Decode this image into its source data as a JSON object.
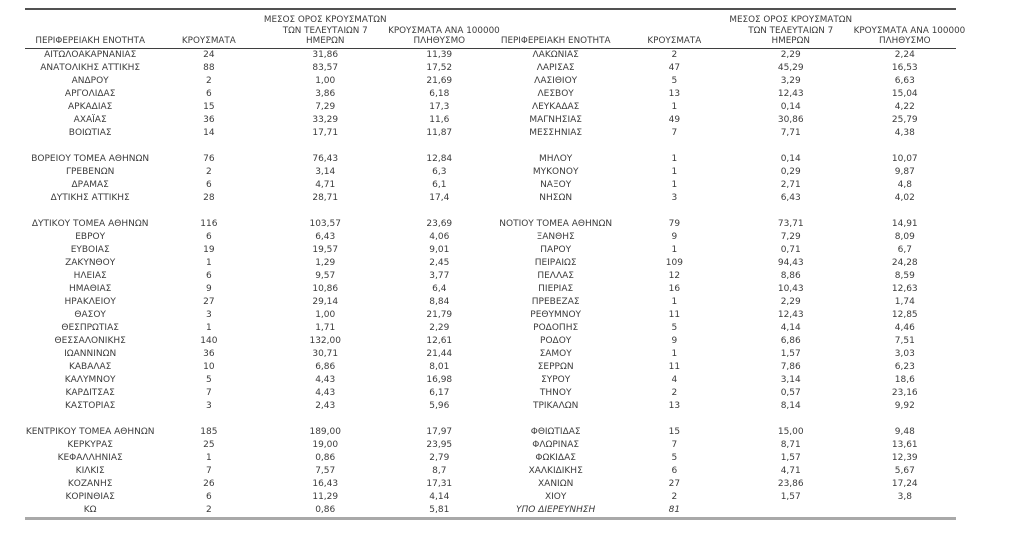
{
  "styles": {
    "text_color": "#3c3c3c",
    "top_border_color": "#515151",
    "header_rule_color": "#3f3f3f",
    "bottom_border_color": "#a9a9a9",
    "background": "#ffffff"
  },
  "header": {
    "columns": [
      {
        "lines": [
          "ΠΕΡΙΦΕΡΕΙΑΚΗ ΕΝΟΤΗΤΑ"
        ]
      },
      {
        "lines": [
          "ΚΡΟΥΣΜΑΤΑ"
        ]
      },
      {
        "lines": [
          "ΜΕΣΟΣ ΟΡΟΣ ΚΡΟΥΣΜΑΤΩΝ",
          "ΤΩΝ ΤΕΛΕΥΤΑΙΩΝ 7",
          "ΗΜΕΡΩΝ"
        ]
      },
      {
        "lines": [
          "ΚΡΟΥΣΜΑΤΑ ΑΝΑ 100000",
          "ΠΛΗΘΥΣΜΟ"
        ]
      }
    ]
  },
  "tables": [
    {
      "rows": [
        {
          "cells": [
            "ΑΙΤΩΛΟΑΚΑΡΝΑΝΙΑΣ",
            "24",
            "31,86",
            "11,39"
          ]
        },
        {
          "cells": [
            "ΑΝΑΤΟΛΙΚΗΣ ΑΤΤΙΚΗΣ",
            "88",
            "83,57",
            "17,52"
          ]
        },
        {
          "cells": [
            "ΑΝΔΡΟΥ",
            "2",
            "1,00",
            "21,69"
          ]
        },
        {
          "cells": [
            "ΑΡΓΟΛΙΔΑΣ",
            "6",
            "3,86",
            "6,18"
          ]
        },
        {
          "cells": [
            "ΑΡΚΑΔΙΑΣ",
            "15",
            "7,29",
            "17,3"
          ]
        },
        {
          "cells": [
            "ΑΧΑΪΑΣ",
            "36",
            "33,29",
            "11,6"
          ]
        },
        {
          "cells": [
            "ΒΟΙΩΤΙΑΣ",
            "14",
            "17,71",
            "11,87"
          ]
        },
        {
          "spacer": true
        },
        {
          "cells": [
            "ΒΟΡΕΙΟΥ ΤΟΜΕΑ ΑΘΗΝΩΝ",
            "76",
            "76,43",
            "12,84"
          ]
        },
        {
          "cells": [
            "ΓΡΕΒΕΝΩΝ",
            "2",
            "3,14",
            "6,3"
          ]
        },
        {
          "cells": [
            "ΔΡΑΜΑΣ",
            "6",
            "4,71",
            "6,1"
          ]
        },
        {
          "cells": [
            "ΔΥΤΙΚΗΣ ΑΤΤΙΚΗΣ",
            "28",
            "28,71",
            "17,4"
          ]
        },
        {
          "spacer": true
        },
        {
          "cells": [
            "ΔΥΤΙΚΟΥ ΤΟΜΕΑ ΑΘΗΝΩΝ",
            "116",
            "103,57",
            "23,69"
          ]
        },
        {
          "cells": [
            "ΕΒΡΟΥ",
            "6",
            "6,43",
            "4,06"
          ]
        },
        {
          "cells": [
            "ΕΥΒΟΙΑΣ",
            "19",
            "19,57",
            "9,01"
          ]
        },
        {
          "cells": [
            "ΖΑΚΥΝΘΟΥ",
            "1",
            "1,29",
            "2,45"
          ]
        },
        {
          "cells": [
            "ΗΛΕΙΑΣ",
            "6",
            "9,57",
            "3,77"
          ]
        },
        {
          "cells": [
            "ΗΜΑΘΙΑΣ",
            "9",
            "10,86",
            "6,4"
          ]
        },
        {
          "cells": [
            "ΗΡΑΚΛΕΙΟΥ",
            "27",
            "29,14",
            "8,84"
          ]
        },
        {
          "cells": [
            "ΘΑΣΟΥ",
            "3",
            "1,00",
            "21,79"
          ]
        },
        {
          "cells": [
            "ΘΕΣΠΡΩΤΙΑΣ",
            "1",
            "1,71",
            "2,29"
          ]
        },
        {
          "cells": [
            "ΘΕΣΣΑΛΟΝΙΚΗΣ",
            "140",
            "132,00",
            "12,61"
          ]
        },
        {
          "cells": [
            "ΙΩΑΝΝΙΝΩΝ",
            "36",
            "30,71",
            "21,44"
          ]
        },
        {
          "cells": [
            "ΚΑΒΑΛΑΣ",
            "10",
            "6,86",
            "8,01"
          ]
        },
        {
          "cells": [
            "ΚΑΛΥΜΝΟΥ",
            "5",
            "4,43",
            "16,98"
          ]
        },
        {
          "cells": [
            "ΚΑΡΔΙΤΣΑΣ",
            "7",
            "4,43",
            "6,17"
          ]
        },
        {
          "cells": [
            "ΚΑΣΤΟΡΙΑΣ",
            "3",
            "2,43",
            "5,96"
          ]
        },
        {
          "spacer": true
        },
        {
          "cells": [
            "ΚΕΝΤΡΙΚΟΥ ΤΟΜΕΑ ΑΘΗΝΩΝ",
            "185",
            "189,00",
            "17,97"
          ]
        },
        {
          "cells": [
            "ΚΕΡΚΥΡΑΣ",
            "25",
            "19,00",
            "23,95"
          ]
        },
        {
          "cells": [
            "ΚΕΦΑΛΛΗΝΙΑΣ",
            "1",
            "0,86",
            "2,79"
          ]
        },
        {
          "cells": [
            "ΚΙΛΚΙΣ",
            "7",
            "7,57",
            "8,7"
          ]
        },
        {
          "cells": [
            "ΚΟΖΑΝΗΣ",
            "26",
            "16,43",
            "17,31"
          ]
        },
        {
          "cells": [
            "ΚΟΡΙΝΘΙΑΣ",
            "6",
            "11,29",
            "4,14"
          ]
        },
        {
          "cells": [
            "ΚΩ",
            "2",
            "0,86",
            "5,81"
          ]
        }
      ]
    },
    {
      "rows": [
        {
          "cells": [
            "ΛΑΚΩΝΙΑΣ",
            "2",
            "2,29",
            "2,24"
          ]
        },
        {
          "cells": [
            "ΛΑΡΙΣΑΣ",
            "47",
            "45,29",
            "16,53"
          ]
        },
        {
          "cells": [
            "ΛΑΣΙΘΙΟΥ",
            "5",
            "3,29",
            "6,63"
          ]
        },
        {
          "cells": [
            "ΛΕΣΒΟΥ",
            "13",
            "12,43",
            "15,04"
          ]
        },
        {
          "cells": [
            "ΛΕΥΚΑΔΑΣ",
            "1",
            "0,14",
            "4,22"
          ]
        },
        {
          "cells": [
            "ΜΑΓΝΗΣΙΑΣ",
            "49",
            "30,86",
            "25,79"
          ]
        },
        {
          "cells": [
            "ΜΕΣΣΗΝΙΑΣ",
            "7",
            "7,71",
            "4,38"
          ]
        },
        {
          "spacer": true
        },
        {
          "cells": [
            "ΜΗΛΟΥ",
            "1",
            "0,14",
            "10,07"
          ]
        },
        {
          "cells": [
            "ΜΥΚΟΝΟΥ",
            "1",
            "0,29",
            "9,87"
          ]
        },
        {
          "cells": [
            "ΝΑΞΟΥ",
            "1",
            "2,71",
            "4,8"
          ]
        },
        {
          "cells": [
            "ΝΗΣΩΝ",
            "3",
            "6,43",
            "4,02"
          ]
        },
        {
          "spacer": true
        },
        {
          "cells": [
            "ΝΟΤΙΟΥ ΤΟΜΕΑ ΑΘΗΝΩΝ",
            "79",
            "73,71",
            "14,91"
          ]
        },
        {
          "cells": [
            "ΞΑΝΘΗΣ",
            "9",
            "7,29",
            "8,09"
          ]
        },
        {
          "cells": [
            "ΠΑΡΟΥ",
            "1",
            "0,71",
            "6,7"
          ]
        },
        {
          "cells": [
            "ΠΕΙΡΑΙΩΣ",
            "109",
            "94,43",
            "24,28"
          ]
        },
        {
          "cells": [
            "ΠΕΛΛΑΣ",
            "12",
            "8,86",
            "8,59"
          ]
        },
        {
          "cells": [
            "ΠΙΕΡΙΑΣ",
            "16",
            "10,43",
            "12,63"
          ]
        },
        {
          "cells": [
            "ΠΡΕΒΕΖΑΣ",
            "1",
            "2,29",
            "1,74"
          ]
        },
        {
          "cells": [
            "ΡΕΘΥΜΝΟΥ",
            "11",
            "12,43",
            "12,85"
          ]
        },
        {
          "cells": [
            "ΡΟΔΟΠΗΣ",
            "5",
            "4,14",
            "4,46"
          ]
        },
        {
          "cells": [
            "ΡΟΔΟΥ",
            "9",
            "6,86",
            "7,51"
          ]
        },
        {
          "cells": [
            "ΣΑΜΟΥ",
            "1",
            "1,57",
            "3,03"
          ]
        },
        {
          "cells": [
            "ΣΕΡΡΩΝ",
            "11",
            "7,86",
            "6,23"
          ]
        },
        {
          "cells": [
            "ΣΥΡΟΥ",
            "4",
            "3,14",
            "18,6"
          ]
        },
        {
          "cells": [
            "ΤΗΝΟΥ",
            "2",
            "0,57",
            "23,16"
          ]
        },
        {
          "cells": [
            "ΤΡΙΚΑΛΩΝ",
            "13",
            "8,14",
            "9,92"
          ]
        },
        {
          "spacer": true
        },
        {
          "cells": [
            "ΦΘΙΩΤΙΔΑΣ",
            "15",
            "15,00",
            "9,48"
          ]
        },
        {
          "cells": [
            "ΦΛΩΡΙΝΑΣ",
            "7",
            "8,71",
            "13,61"
          ]
        },
        {
          "cells": [
            "ΦΩΚΙΔΑΣ",
            "5",
            "1,57",
            "12,39"
          ]
        },
        {
          "cells": [
            "ΧΑΛΚΙΔΙΚΗΣ",
            "6",
            "4,71",
            "5,67"
          ]
        },
        {
          "cells": [
            "ΧΑΝΙΩΝ",
            "27",
            "23,86",
            "17,24"
          ]
        },
        {
          "cells": [
            "ΧΙΟΥ",
            "2",
            "1,57",
            "3,8"
          ]
        },
        {
          "cells": [
            "ΥΠΟ ΔΙΕΡΕΥΝΗΣΗ",
            "81",
            "",
            ""
          ],
          "italic": true
        }
      ]
    }
  ]
}
